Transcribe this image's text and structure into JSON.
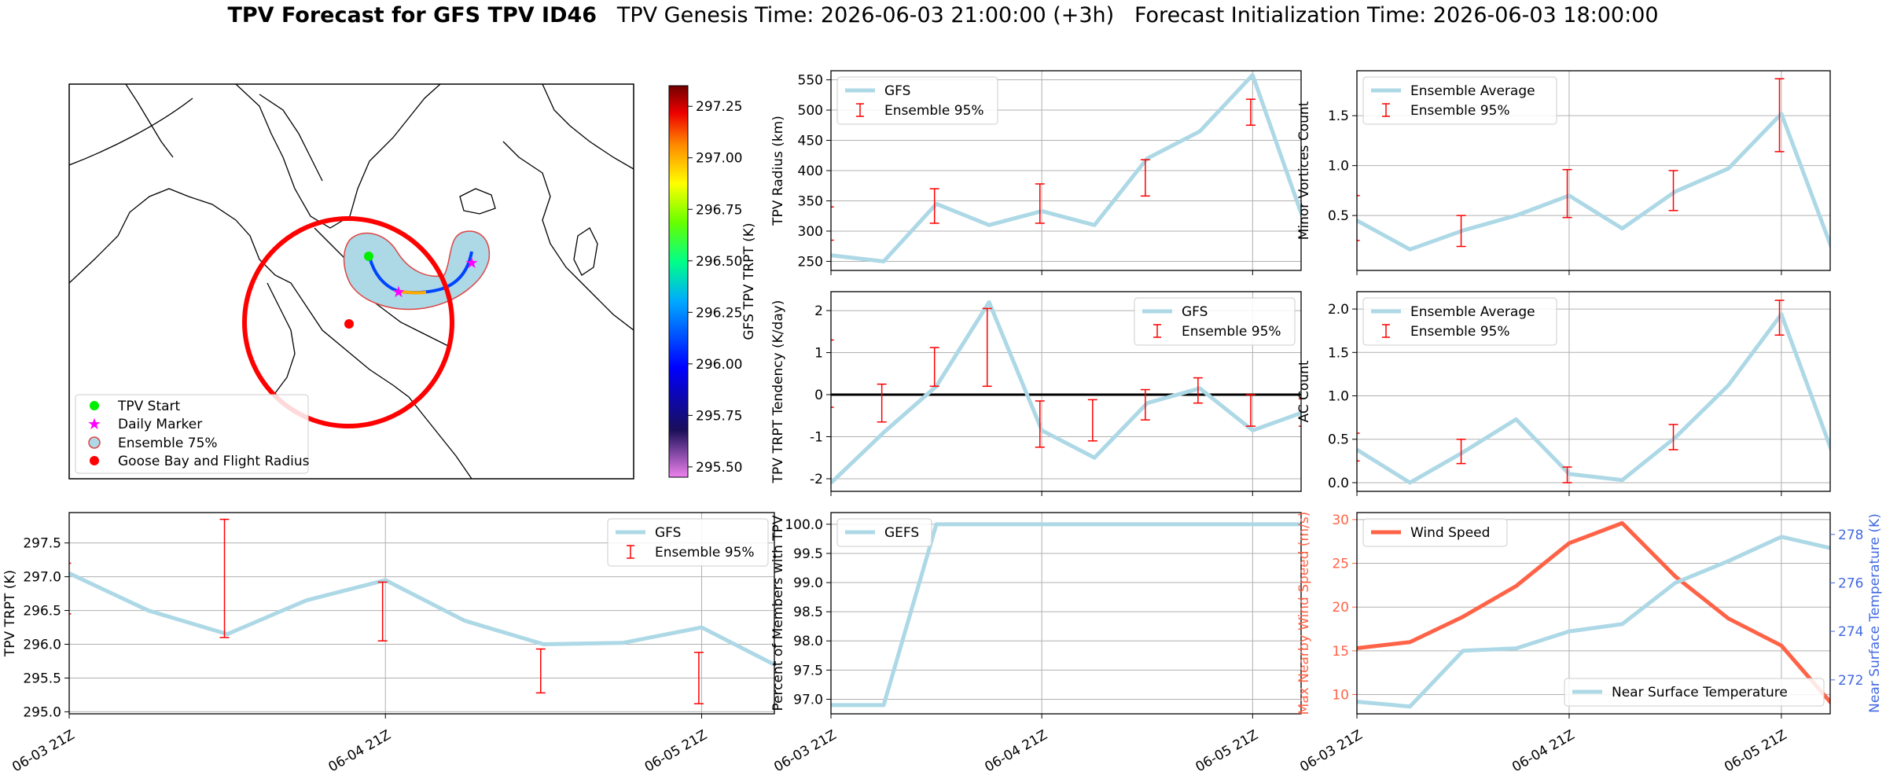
{
  "title": {
    "bold": "TPV Forecast for GFS TPV ID46",
    "genesis": "TPV Genesis Time: 2026-06-03 21:00:00 (+3h)",
    "init": "Forecast Initialization Time: 2026-06-03 18:00:00"
  },
  "colors": {
    "gfs_line": "#add8e6",
    "error_bar": "#ff0000",
    "wind": "#ff6347",
    "temp_axis": "#4169e1",
    "grid": "#b0b0b0"
  },
  "x_ticks": [
    "06-03 21Z",
    "06-04 21Z",
    "06-05 21Z"
  ],
  "map": {
    "legend": [
      "TPV Start",
      "Daily Marker",
      "Ensemble 75%",
      "Goose Bay and Flight Radius"
    ],
    "colorbar_label": "GFS TPV TRPT (K)",
    "colorbar_ticks": [
      "297.25",
      "297.00",
      "296.75",
      "296.50",
      "296.25",
      "296.00",
      "295.75",
      "295.50"
    ],
    "colorbar_range": [
      295.45,
      297.35
    ]
  },
  "chart_data": [
    {
      "id": "radius",
      "type": "line",
      "ylabel": "TPV Radius (km)",
      "ylim": [
        235,
        565
      ],
      "yticks": [
        250,
        300,
        350,
        400,
        450,
        500,
        550
      ],
      "x": [
        "06-03 21Z",
        "06-04 03Z",
        "06-04 09Z",
        "06-04 15Z",
        "06-04 21Z",
        "06-05 03Z",
        "06-05 09Z",
        "06-05 15Z",
        "06-05 21Z",
        "06-06 03Z"
      ],
      "series": [
        {
          "name": "GFS",
          "values": [
            260,
            250,
            345,
            310,
            333,
            310,
            420,
            465,
            558,
            310
          ]
        }
      ],
      "errorbars": [
        {
          "i": 0,
          "lo": 285,
          "hi": 340
        },
        {
          "i": 2,
          "lo": 313,
          "hi": 370
        },
        {
          "i": 4,
          "lo": 313,
          "hi": 378
        },
        {
          "i": 6,
          "lo": 358,
          "hi": 418
        },
        {
          "i": 8,
          "lo": 475,
          "hi": 518
        }
      ],
      "legend": [
        "GFS",
        "Ensemble 95%"
      ],
      "legend_pos": "top-left"
    },
    {
      "id": "minor",
      "type": "line",
      "ylabel": "Minor Vortices Count",
      "ylim": [
        -0.05,
        1.95
      ],
      "yticks": [
        0.5,
        1.0,
        1.5
      ],
      "x": [
        "06-03 21Z",
        "06-04 03Z",
        "06-04 09Z",
        "06-04 15Z",
        "06-04 21Z",
        "06-05 03Z",
        "06-05 09Z",
        "06-05 15Z",
        "06-05 21Z",
        "06-06 03Z"
      ],
      "series": [
        {
          "name": "Ensemble Average",
          "values": [
            0.45,
            0.16,
            0.35,
            0.5,
            0.7,
            0.37,
            0.74,
            0.97,
            1.52,
            0.1
          ]
        }
      ],
      "errorbars": [
        {
          "i": 0,
          "lo": 0.25,
          "hi": 0.7
        },
        {
          "i": 2,
          "lo": 0.19,
          "hi": 0.5
        },
        {
          "i": 4,
          "lo": 0.48,
          "hi": 0.96
        },
        {
          "i": 6,
          "lo": 0.55,
          "hi": 0.95
        },
        {
          "i": 8,
          "lo": 1.14,
          "hi": 1.87
        }
      ],
      "legend": [
        "Ensemble Average",
        "Ensemble 95%"
      ],
      "legend_pos": "top-left"
    },
    {
      "id": "tendency",
      "type": "line",
      "ylabel": "TPV TRPT Tendency (K/day)",
      "ylim": [
        -2.3,
        2.45
      ],
      "yticks": [
        -2,
        -1,
        0,
        1,
        2
      ],
      "hline": 0,
      "x": [
        "06-03 21Z",
        "06-04 03Z",
        "06-04 09Z",
        "06-04 15Z",
        "06-04 21Z",
        "06-05 03Z",
        "06-05 09Z",
        "06-05 15Z",
        "06-05 21Z",
        "06-06 03Z"
      ],
      "series": [
        {
          "name": "GFS",
          "values": [
            -2.1,
            -0.9,
            0.2,
            2.2,
            -0.85,
            -1.5,
            -0.2,
            0.15,
            -0.85,
            -0.4
          ]
        }
      ],
      "errorbars": [
        {
          "i": 0,
          "lo": -0.3,
          "hi": 1.3
        },
        {
          "i": 1,
          "lo": -0.65,
          "hi": 0.25
        },
        {
          "i": 2,
          "lo": 0.2,
          "hi": 1.12
        },
        {
          "i": 3,
          "lo": 0.2,
          "hi": 2.05
        },
        {
          "i": 4,
          "lo": -1.25,
          "hi": -0.15
        },
        {
          "i": 5,
          "lo": -1.1,
          "hi": -0.12
        },
        {
          "i": 6,
          "lo": -0.6,
          "hi": 0.12
        },
        {
          "i": 7,
          "lo": -0.2,
          "hi": 0.4
        },
        {
          "i": 8,
          "lo": -0.75,
          "hi": 0.0
        },
        {
          "i": 9,
          "lo": -0.75,
          "hi": -0.1
        }
      ],
      "legend": [
        "GFS",
        "Ensemble 95%"
      ],
      "legend_pos": "top-right"
    },
    {
      "id": "ac",
      "type": "line",
      "ylabel": "AC Count",
      "ylim": [
        -0.1,
        2.2
      ],
      "yticks": [
        0.0,
        0.5,
        1.0,
        1.5,
        2.0
      ],
      "x": [
        "06-03 21Z",
        "06-04 03Z",
        "06-04 09Z",
        "06-04 15Z",
        "06-04 21Z",
        "06-05 03Z",
        "06-05 09Z",
        "06-05 15Z",
        "06-05 21Z",
        "06-06 03Z"
      ],
      "series": [
        {
          "name": "Ensemble Average",
          "values": [
            0.38,
            0.0,
            0.35,
            0.73,
            0.1,
            0.03,
            0.52,
            1.12,
            1.94,
            0.28
          ]
        }
      ],
      "errorbars": [
        {
          "i": 0,
          "lo": 0.25,
          "hi": 0.57
        },
        {
          "i": 2,
          "lo": 0.22,
          "hi": 0.5
        },
        {
          "i": 4,
          "lo": 0.0,
          "hi": 0.18
        },
        {
          "i": 6,
          "lo": 0.38,
          "hi": 0.67
        },
        {
          "i": 8,
          "lo": 1.7,
          "hi": 2.1
        }
      ],
      "legend": [
        "Ensemble Average",
        "Ensemble 95%"
      ],
      "legend_pos": "top-left"
    },
    {
      "id": "trpt",
      "type": "line",
      "ylabel": "TPV TRPT (K)",
      "ylim": [
        294.97,
        297.95
      ],
      "yticks": [
        295.0,
        295.5,
        296.0,
        296.5,
        297.0,
        297.5
      ],
      "x": [
        "06-03 21Z",
        "06-04 03Z",
        "06-04 09Z",
        "06-04 15Z",
        "06-04 21Z",
        "06-05 03Z",
        "06-05 09Z",
        "06-05 15Z",
        "06-05 21Z",
        "06-06 03Z"
      ],
      "series": [
        {
          "name": "GFS",
          "values": [
            297.05,
            296.5,
            296.15,
            296.65,
            296.95,
            296.35,
            296.0,
            296.02,
            296.25,
            295.65
          ]
        }
      ],
      "errorbars": [
        {
          "i": 0,
          "lo": 296.45,
          "hi": 297.2
        },
        {
          "i": 2,
          "lo": 296.1,
          "hi": 297.85
        },
        {
          "i": 4,
          "lo": 296.05,
          "hi": 296.92
        },
        {
          "i": 6,
          "lo": 295.28,
          "hi": 295.93
        },
        {
          "i": 8,
          "lo": 295.12,
          "hi": 295.88
        }
      ],
      "legend": [
        "GFS",
        "Ensemble 95%"
      ],
      "legend_pos": "top-right"
    },
    {
      "id": "percent",
      "type": "line",
      "ylabel": "Percent of Members with TPV",
      "ylim": [
        96.75,
        100.2
      ],
      "yticks": [
        97.0,
        97.5,
        98.0,
        98.5,
        99.0,
        99.5,
        100.0
      ],
      "x": [
        "06-03 21Z",
        "06-04 03Z",
        "06-04 09Z",
        "06-04 15Z",
        "06-04 21Z",
        "06-05 03Z",
        "06-05 09Z",
        "06-05 15Z",
        "06-05 21Z",
        "06-06 03Z"
      ],
      "series": [
        {
          "name": "GEFS",
          "values": [
            96.9,
            96.9,
            100,
            100,
            100,
            100,
            100,
            100,
            100,
            100
          ]
        }
      ],
      "legend": [
        "GEFS"
      ],
      "legend_pos": "top-left"
    },
    {
      "id": "wind",
      "type": "line",
      "ylabel": "Max Nearby Wind Speed (m/s)",
      "ylim": [
        7.8,
        30.8
      ],
      "yticks": [
        10,
        15,
        20,
        25,
        30
      ],
      "ylabel2": "Near Surface Temperature (K)",
      "ylim2": [
        270.6,
        278.9
      ],
      "yticks2": [
        272,
        274,
        276,
        278
      ],
      "x": [
        "06-03 21Z",
        "06-04 03Z",
        "06-04 09Z",
        "06-04 15Z",
        "06-04 21Z",
        "06-05 03Z",
        "06-05 09Z",
        "06-05 15Z",
        "06-05 21Z",
        "06-06 03Z"
      ],
      "series": [
        {
          "name": "Wind Speed",
          "axis": "left",
          "values": [
            15.3,
            16.0,
            18.9,
            22.4,
            27.3,
            29.6,
            23.5,
            18.7,
            15.6,
            8.6
          ]
        },
        {
          "name": "Near Surface Temperature",
          "axis": "right",
          "values": [
            271.1,
            270.9,
            273.2,
            273.3,
            274.0,
            274.3,
            276.0,
            276.9,
            277.9,
            277.4
          ]
        }
      ],
      "legend": [
        "Wind Speed",
        "Near Surface Temperature"
      ],
      "legend_pos": "top-left / bottom-right"
    }
  ]
}
